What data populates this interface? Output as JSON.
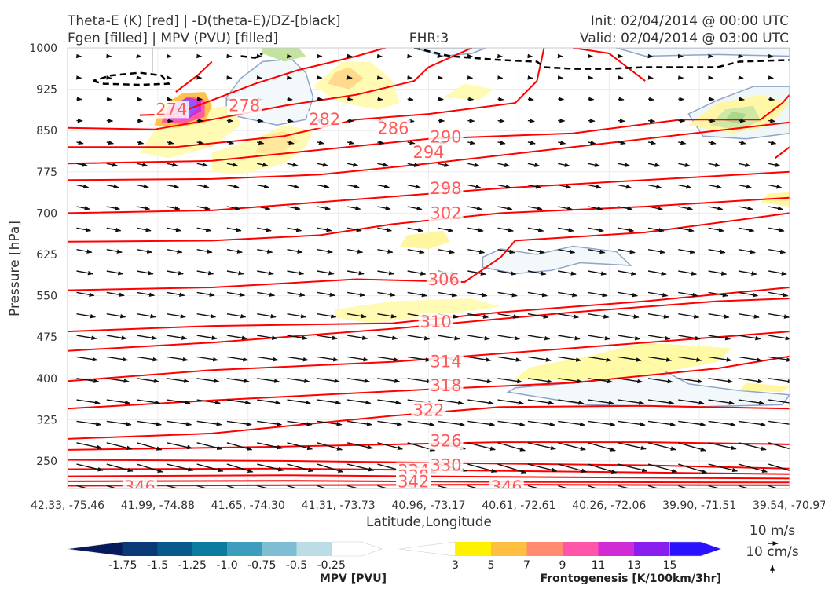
{
  "header": {
    "title_left_1": "Theta-E (K) [red] | -D(theta-E)/DZ-[black]",
    "title_left_2": "Fgen [filled] | MPV (PVU) [filled]",
    "fhr": "FHR:3",
    "init": "Init: 02/04/2014 @ 00:00 UTC",
    "valid": "Valid: 02/04/2014 @ 03:00 UTC"
  },
  "chart_data": {
    "type": "cross-section",
    "title": "Theta-E (K) [red] | -D(theta-E)/DZ-[black] / Fgen [filled] | MPV (PVU) [filled]",
    "xlabel": "Latitude,Longitude",
    "ylabel": "Pressure [hPa]",
    "x_ticks": [
      "42.33, -75.46",
      "41.99, -74.88",
      "41.65, -74.30",
      "41.31, -73.73",
      "40.96, -73.17",
      "40.61, -72.61",
      "40.26, -72.06",
      "39.90, -71.51",
      "39.54, -70.97"
    ],
    "y_ticks": [
      250,
      325,
      400,
      475,
      550,
      625,
      700,
      775,
      850,
      925,
      1000
    ],
    "ylim": [
      1000,
      200
    ],
    "grid": true,
    "theta_e_contours": {
      "color": "#ff0000",
      "labels": [
        278,
        282,
        286,
        290,
        294,
        298,
        302,
        306,
        310,
        314,
        318,
        322,
        326,
        330,
        334,
        338,
        342,
        346
      ],
      "printed_labels": [
        {
          "value": "274",
          "x": 0.144,
          "p": 888
        },
        {
          "value": "278",
          "x": 0.245,
          "p": 895
        },
        {
          "value": "282",
          "x": 0.356,
          "p": 870
        },
        {
          "value": "286",
          "x": 0.451,
          "p": 854
        },
        {
          "value": "290",
          "x": 0.524,
          "p": 838
        },
        {
          "value": "294",
          "x": 0.5,
          "p": 810
        },
        {
          "value": "298",
          "x": 0.524,
          "p": 745
        },
        {
          "value": "302",
          "x": 0.524,
          "p": 700
        },
        {
          "value": "306",
          "x": 0.521,
          "p": 579
        },
        {
          "value": "310",
          "x": 0.51,
          "p": 502
        },
        {
          "value": "314",
          "x": 0.524,
          "p": 430
        },
        {
          "value": "318",
          "x": 0.524,
          "p": 387
        },
        {
          "value": "322",
          "x": 0.5,
          "p": 342
        },
        {
          "value": "326",
          "x": 0.524,
          "p": 286
        },
        {
          "value": "330",
          "x": 0.524,
          "p": 242
        },
        {
          "value": "334",
          "x": 0.479,
          "p": 232
        },
        {
          "value": "338",
          "x": 0.479,
          "p": 222
        },
        {
          "value": "342",
          "x": 0.479,
          "p": 212
        },
        {
          "value": "346",
          "x": 0.1,
          "p": 203
        },
        {
          "value": "346",
          "x": 0.608,
          "p": 203
        }
      ]
    },
    "wind_vectors": {
      "reference_horizontal": "10 m/s",
      "reference_vertical": "10 cm/s"
    },
    "colorbar_mpv": {
      "label": "MPV [PVU]",
      "ticks": [
        "-1.75",
        "-1.5",
        "-1.25",
        "-1.0",
        "-0.75",
        "-0.5",
        "-0.25"
      ],
      "colors": [
        "#061a5c",
        "#0a3978",
        "#075a8a",
        "#0b7ba0",
        "#3d9dbe",
        "#7dbed3",
        "#bcdde6",
        "#ffffff"
      ]
    },
    "colorbar_fgen": {
      "label": "Frontogenesis [K/100km/3hr]",
      "ticks": [
        "3",
        "5",
        "7",
        "9",
        "11",
        "13",
        "15"
      ],
      "colors": [
        "#ffffff",
        "#fff100",
        "#ffbf40",
        "#ff8c6e",
        "#ff55a8",
        "#d12bd6",
        "#8a1eee",
        "#2a12ff"
      ]
    }
  },
  "colors": {
    "theta_e": "#ff0000",
    "label": "#ff5a5a",
    "vectors": "#111111",
    "dashed": "#000000",
    "mpv_outline": "#8fa4c8"
  }
}
